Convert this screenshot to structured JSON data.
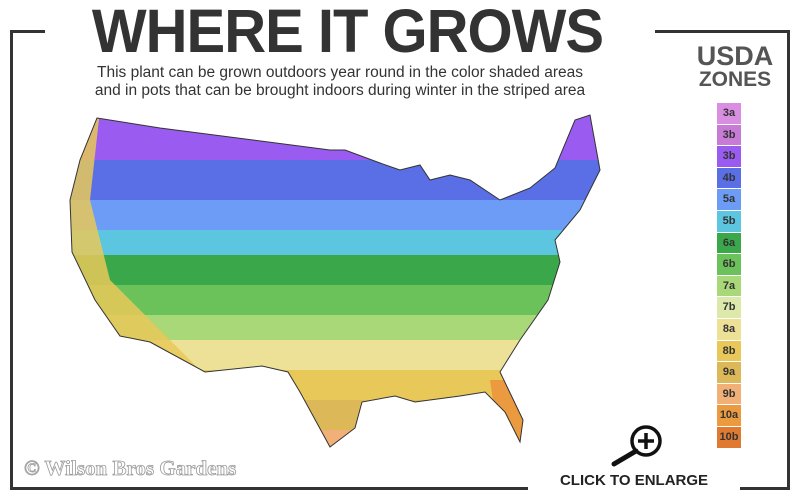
{
  "header": {
    "title": "WHERE IT GROWS",
    "subtitle_line1": "This plant can be grown outdoors year round in the color shaded areas",
    "subtitle_line2": "and in pots that can be brought indoors during winter in the striped area"
  },
  "legend": {
    "title_line1": "USDA",
    "title_line2": "ZONES",
    "zones": [
      {
        "label": "3a",
        "color": "#d98ee2"
      },
      {
        "label": "3b",
        "color": "#c77ad6"
      },
      {
        "label": "3b",
        "color": "#9a5cf0"
      },
      {
        "label": "4b",
        "color": "#5a6ee6"
      },
      {
        "label": "5a",
        "color": "#6c9cf5"
      },
      {
        "label": "5b",
        "color": "#5cc6e0"
      },
      {
        "label": "6a",
        "color": "#3aa84a"
      },
      {
        "label": "6b",
        "color": "#6cc25a"
      },
      {
        "label": "7a",
        "color": "#a8d878"
      },
      {
        "label": "7b",
        "color": "#dde9ab"
      },
      {
        "label": "8a",
        "color": "#ede198"
      },
      {
        "label": "8b",
        "color": "#e8c858"
      },
      {
        "label": "9a",
        "color": "#dcb858"
      },
      {
        "label": "9b",
        "color": "#f0b078"
      },
      {
        "label": "10a",
        "color": "#ec9a40"
      },
      {
        "label": "10b",
        "color": "#e07a30"
      }
    ]
  },
  "footer": {
    "copyright": "© Wilson Bros Gardens",
    "enlarge_label": "CLICK TO ENLARGE",
    "enlarge_icon": "zoom-in-icon"
  }
}
